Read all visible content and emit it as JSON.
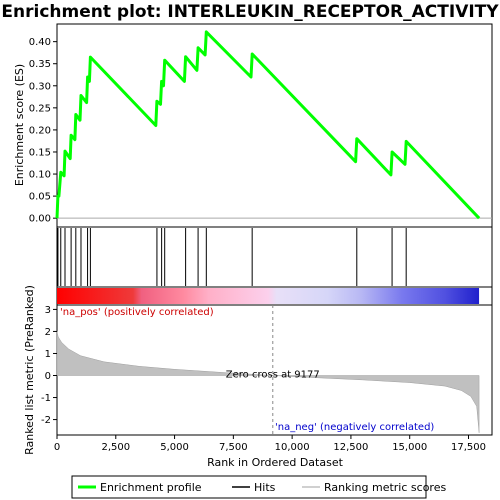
{
  "chart_data": {
    "type": "line",
    "title": "Enrichment plot: INTERLEUKIN_RECEPTOR_ACTIVITY",
    "top_panel": {
      "ylabel": "Enrichment score (ES)",
      "ylim": [
        -0.02,
        0.44
      ],
      "yticks": [
        "0.00",
        "0.05",
        "0.10",
        "0.15",
        "0.20",
        "0.25",
        "0.30",
        "0.35",
        "0.40"
      ],
      "series_name": "Enrichment profile",
      "color": "#00ff00",
      "es_points": [
        [
          0,
          0.0
        ],
        [
          40,
          0.05
        ],
        [
          80,
          0.05
        ],
        [
          160,
          0.104
        ],
        [
          300,
          0.096
        ],
        [
          340,
          0.152
        ],
        [
          560,
          0.135
        ],
        [
          600,
          0.188
        ],
        [
          760,
          0.178
        ],
        [
          800,
          0.235
        ],
        [
          980,
          0.222
        ],
        [
          1020,
          0.278
        ],
        [
          1260,
          0.262
        ],
        [
          1300,
          0.32
        ],
        [
          1380,
          0.31
        ],
        [
          1420,
          0.365
        ],
        [
          4200,
          0.21
        ],
        [
          4250,
          0.265
        ],
        [
          4400,
          0.258
        ],
        [
          4450,
          0.31
        ],
        [
          4530,
          0.3
        ],
        [
          4580,
          0.358
        ],
        [
          5420,
          0.31
        ],
        [
          5470,
          0.366
        ],
        [
          5950,
          0.335
        ],
        [
          6000,
          0.386
        ],
        [
          6300,
          0.37
        ],
        [
          6350,
          0.422
        ],
        [
          8250,
          0.32
        ],
        [
          8300,
          0.372
        ],
        [
          12700,
          0.128
        ],
        [
          12750,
          0.18
        ],
        [
          14200,
          0.098
        ],
        [
          14250,
          0.15
        ],
        [
          14800,
          0.122
        ],
        [
          14850,
          0.174
        ],
        [
          17950,
          0.0
        ]
      ]
    },
    "hits": {
      "series_name": "Hits",
      "positions": [
        40,
        160,
        340,
        600,
        800,
        1020,
        1300,
        1420,
        4250,
        4450,
        4580,
        5470,
        6000,
        6350,
        8300,
        12750,
        14250,
        14850
      ]
    },
    "bottom_panel": {
      "ylabel": "Ranked list metric (PreRanked)",
      "xlabel": "Rank in Ordered Dataset",
      "xlim": [
        0,
        18500
      ],
      "ylim": [
        -2.7,
        3.2
      ],
      "xticks": [
        "0",
        "2,500",
        "5,000",
        "7,500",
        "10,000",
        "12,500",
        "15,000",
        "17,500"
      ],
      "yticks": [
        "3",
        "2",
        "1",
        "0",
        "-1",
        "-2"
      ],
      "series_name": "Ranking metric scores",
      "metric_profile": [
        [
          0,
          2.0
        ],
        [
          50,
          1.75
        ],
        [
          200,
          1.5
        ],
        [
          500,
          1.2
        ],
        [
          1000,
          0.9
        ],
        [
          2000,
          0.62
        ],
        [
          3500,
          0.42
        ],
        [
          5000,
          0.28
        ],
        [
          7000,
          0.14
        ],
        [
          9177,
          0.0
        ],
        [
          11000,
          -0.1
        ],
        [
          13000,
          -0.2
        ],
        [
          15000,
          -0.32
        ],
        [
          16500,
          -0.48
        ],
        [
          17200,
          -0.68
        ],
        [
          17600,
          -0.95
        ],
        [
          17850,
          -1.4
        ],
        [
          17950,
          -2.6
        ]
      ],
      "zero_cross_label": "Zero cross at 9177",
      "zero_cross_rank": 9177,
      "pos_label": "'na_pos' (positively correlated)",
      "neg_label": "'na_neg' (negatively correlated)",
      "pos_color": "#ff0000",
      "neg_color": "#0000ff"
    },
    "n_ranks": 17950,
    "legend": [
      "Enrichment profile",
      "Hits",
      "Ranking metric scores"
    ]
  }
}
